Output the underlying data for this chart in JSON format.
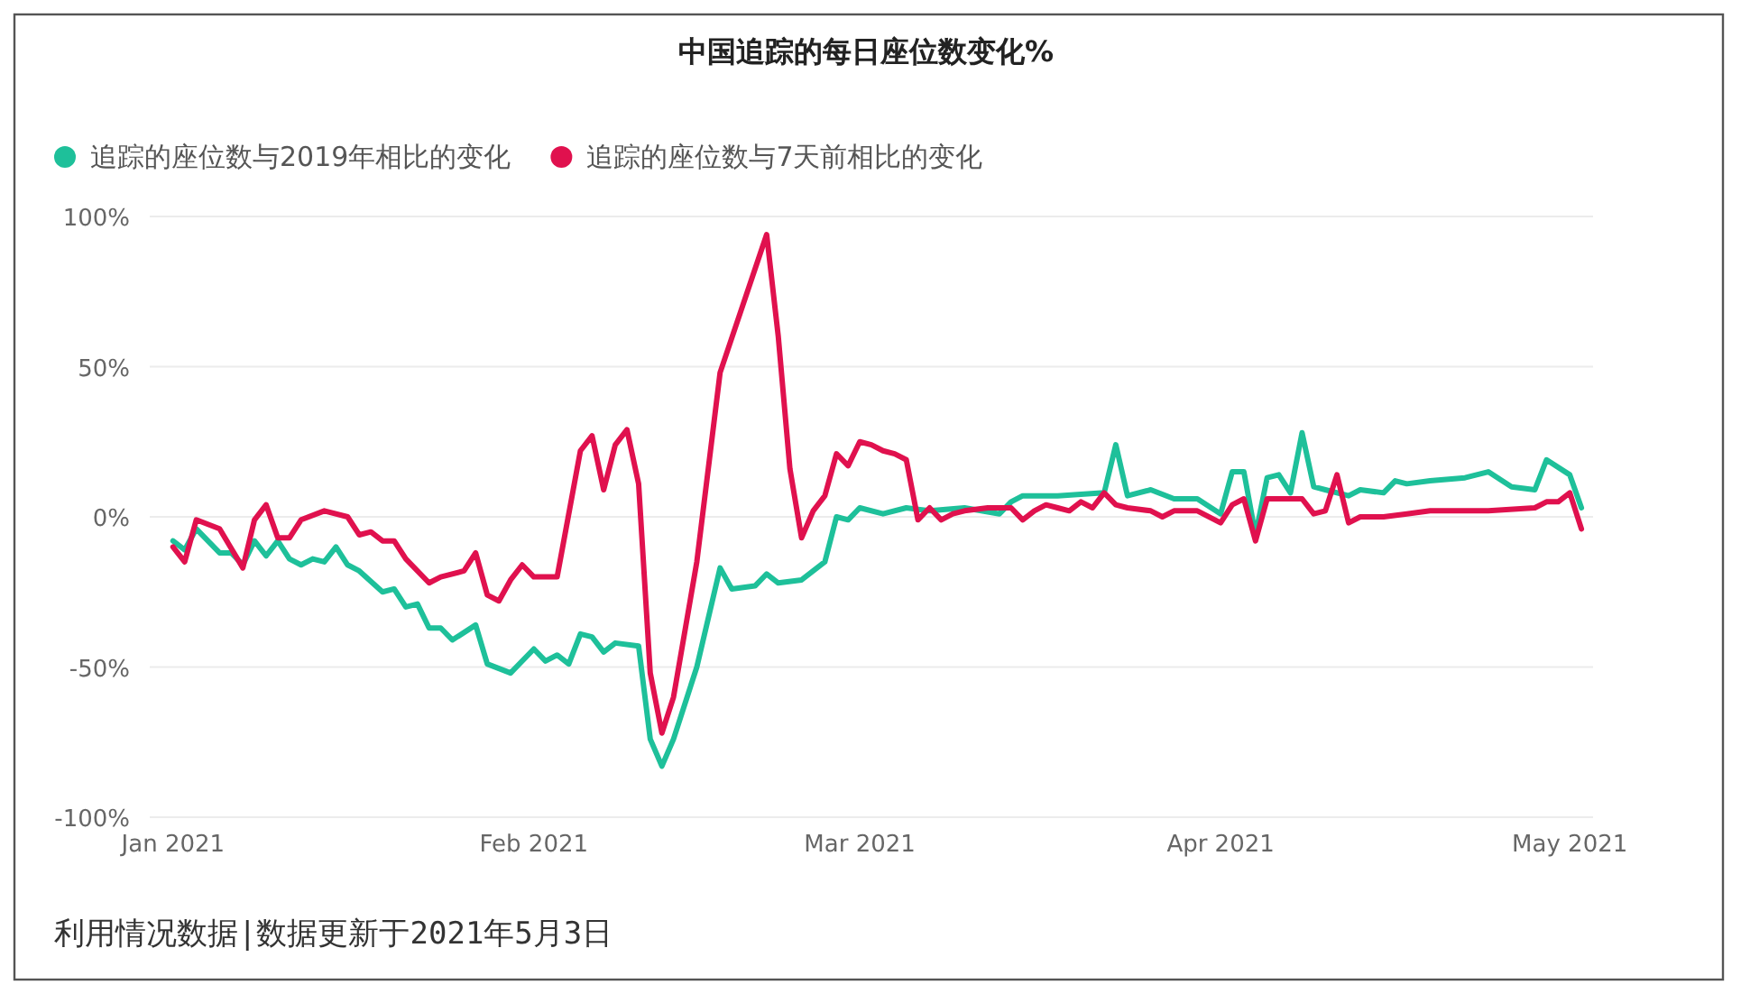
{
  "chart_data": {
    "type": "line",
    "title": "中国追踪的每日座位数变化%",
    "legend": "top left",
    "grid": "y",
    "marker": "none",
    "line_style": "solid",
    "xlim": [
      "2020-12-30",
      "2021-05-03"
    ],
    "xticks": [
      {
        "value": "2021-01-01",
        "label": "Jan 2021"
      },
      {
        "value": "2021-02-01",
        "label": "Feb 2021"
      },
      {
        "value": "2021-03-01",
        "label": "Mar 2021"
      },
      {
        "value": "2021-04-01",
        "label": "Apr 2021"
      },
      {
        "value": "2021-05-01",
        "label": "May 2021"
      }
    ],
    "ylim": [
      -100,
      100
    ],
    "yticks": [
      {
        "value": -100,
        "label": "-100%"
      },
      {
        "value": -50,
        "label": "-50%"
      },
      {
        "value": 0,
        "label": "0%"
      },
      {
        "value": 50,
        "label": "50%"
      },
      {
        "value": 100,
        "label": "100%"
      }
    ],
    "series": [
      {
        "name": "追踪的座位数与2019年相比的变化",
        "color": "#1ec09a",
        "x": [
          "2021-01-01",
          "2021-01-02",
          "2021-01-03",
          "2021-01-05",
          "2021-01-06",
          "2021-01-07",
          "2021-01-08",
          "2021-01-09",
          "2021-01-10",
          "2021-01-11",
          "2021-01-12",
          "2021-01-13",
          "2021-01-14",
          "2021-01-15",
          "2021-01-16",
          "2021-01-17",
          "2021-01-19",
          "2021-01-20",
          "2021-01-21",
          "2021-01-22",
          "2021-01-23",
          "2021-01-24",
          "2021-01-25",
          "2021-01-27",
          "2021-01-28",
          "2021-01-30",
          "2021-02-01",
          "2021-02-02",
          "2021-02-03",
          "2021-02-04",
          "2021-02-05",
          "2021-02-06",
          "2021-02-07",
          "2021-02-08",
          "2021-02-10",
          "2021-02-11",
          "2021-02-12",
          "2021-02-13",
          "2021-02-15",
          "2021-02-17",
          "2021-02-18",
          "2021-02-20",
          "2021-02-21",
          "2021-02-22",
          "2021-02-24",
          "2021-02-26",
          "2021-02-27",
          "2021-02-28",
          "2021-03-01",
          "2021-03-03",
          "2021-03-05",
          "2021-03-07",
          "2021-03-10",
          "2021-03-13",
          "2021-03-14",
          "2021-03-15",
          "2021-03-18",
          "2021-03-22",
          "2021-03-23",
          "2021-03-24",
          "2021-03-26",
          "2021-03-28",
          "2021-03-30",
          "2021-04-01",
          "2021-04-02",
          "2021-04-03",
          "2021-04-04",
          "2021-04-05",
          "2021-04-06",
          "2021-04-07",
          "2021-04-08",
          "2021-04-09",
          "2021-04-10",
          "2021-04-12",
          "2021-04-13",
          "2021-04-15",
          "2021-04-16",
          "2021-04-17",
          "2021-04-19",
          "2021-04-22",
          "2021-04-24",
          "2021-04-26",
          "2021-04-28",
          "2021-04-29",
          "2021-05-01",
          "2021-05-02"
        ],
        "values": [
          -8,
          -11,
          -4,
          -12,
          -12,
          -16,
          -8,
          -13,
          -8,
          -14,
          -16,
          -14,
          -15,
          -10,
          -16,
          -18,
          -25,
          -24,
          -30,
          -29,
          -37,
          -37,
          -41,
          -36,
          -49,
          -52,
          -44,
          -48,
          -46,
          -49,
          -39,
          -40,
          -45,
          -42,
          -43,
          -74,
          -83,
          -74,
          -50,
          -17,
          -24,
          -23,
          -19,
          -22,
          -21,
          -15,
          0,
          -1,
          3,
          1,
          3,
          2,
          3,
          1,
          5,
          7,
          7,
          8,
          24,
          7,
          9,
          6,
          6,
          1,
          15,
          15,
          -6,
          13,
          14,
          8,
          28,
          10,
          9,
          7,
          9,
          8,
          12,
          11,
          12,
          13,
          15,
          10,
          9,
          19,
          14,
          3
        ]
      },
      {
        "name": "追踪的座位数与7天前相比的变化",
        "color": "#e0114e",
        "x": [
          "2021-01-01",
          "2021-01-02",
          "2021-01-03",
          "2021-01-05",
          "2021-01-07",
          "2021-01-08",
          "2021-01-09",
          "2021-01-10",
          "2021-01-11",
          "2021-01-12",
          "2021-01-14",
          "2021-01-16",
          "2021-01-17",
          "2021-01-18",
          "2021-01-19",
          "2021-01-20",
          "2021-01-21",
          "2021-01-23",
          "2021-01-24",
          "2021-01-26",
          "2021-01-27",
          "2021-01-28",
          "2021-01-29",
          "2021-01-30",
          "2021-01-31",
          "2021-02-01",
          "2021-02-03",
          "2021-02-05",
          "2021-02-06",
          "2021-02-07",
          "2021-02-08",
          "2021-02-09",
          "2021-02-10",
          "2021-02-11",
          "2021-02-12",
          "2021-02-13",
          "2021-02-15",
          "2021-02-17",
          "2021-02-21",
          "2021-02-22",
          "2021-02-23",
          "2021-02-24",
          "2021-02-25",
          "2021-02-26",
          "2021-02-27",
          "2021-02-28",
          "2021-03-01",
          "2021-03-02",
          "2021-03-03",
          "2021-03-04",
          "2021-03-05",
          "2021-03-06",
          "2021-03-07",
          "2021-03-08",
          "2021-03-09",
          "2021-03-10",
          "2021-03-12",
          "2021-03-14",
          "2021-03-15",
          "2021-03-16",
          "2021-03-17",
          "2021-03-18",
          "2021-03-19",
          "2021-03-20",
          "2021-03-21",
          "2021-03-22",
          "2021-03-23",
          "2021-03-24",
          "2021-03-26",
          "2021-03-27",
          "2021-03-28",
          "2021-03-30",
          "2021-04-01",
          "2021-04-02",
          "2021-04-03",
          "2021-04-04",
          "2021-04-05",
          "2021-04-08",
          "2021-04-09",
          "2021-04-10",
          "2021-04-11",
          "2021-04-12",
          "2021-04-13",
          "2021-04-15",
          "2021-04-17",
          "2021-04-19",
          "2021-04-22",
          "2021-04-24",
          "2021-04-28",
          "2021-04-29",
          "2021-04-30",
          "2021-05-01",
          "2021-05-02"
        ],
        "values": [
          -10,
          -15,
          -1,
          -4,
          -17,
          -1,
          4,
          -7,
          -7,
          -1,
          2,
          0,
          -6,
          -5,
          -8,
          -8,
          -14,
          -22,
          -20,
          -18,
          -12,
          -26,
          -28,
          -21,
          -16,
          -20,
          -20,
          22,
          27,
          9,
          24,
          29,
          11,
          -52,
          -72,
          -60,
          -15,
          48,
          94,
          60,
          16,
          -7,
          2,
          7,
          21,
          17,
          25,
          24,
          22,
          21,
          19,
          -1,
          3,
          -1,
          1,
          2,
          3,
          3,
          -1,
          2,
          4,
          3,
          2,
          5,
          3,
          8,
          4,
          3,
          2,
          0,
          2,
          2,
          -2,
          4,
          6,
          -8,
          6,
          6,
          1,
          2,
          14,
          -2,
          0,
          0,
          1,
          2,
          2,
          2,
          3,
          5,
          5,
          8,
          -4
        ]
      }
    ],
    "annotations": [
      "利用情况数据|数据更新于2021年5月3日"
    ]
  }
}
